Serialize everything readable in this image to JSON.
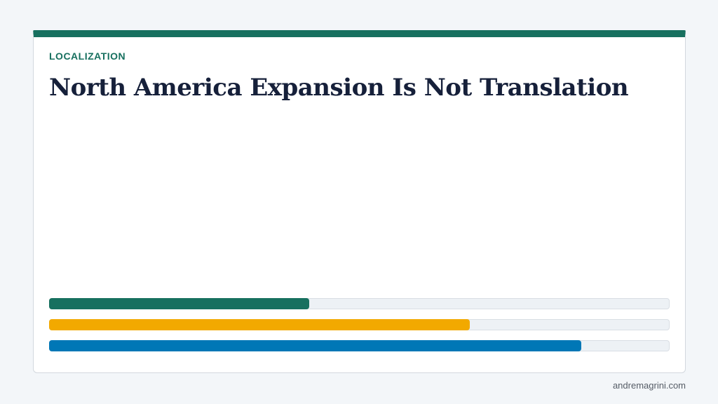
{
  "card": {
    "eyebrow": "LOCALIZATION",
    "title": "North America Expansion Is Not Translation",
    "accent": "#17705f"
  },
  "bars": {
    "xlim": [
      0,
      100
    ],
    "items": [
      {
        "value": 42,
        "color": "#17705f"
      },
      {
        "value": 68,
        "color": "#f2a900"
      },
      {
        "value": 86,
        "color": "#0077b6"
      }
    ]
  },
  "footer": "andremagrini.com"
}
